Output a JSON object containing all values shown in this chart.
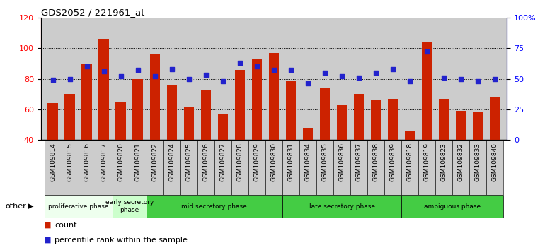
{
  "title": "GDS2052 / 221961_at",
  "samples": [
    "GSM109814",
    "GSM109815",
    "GSM109816",
    "GSM109817",
    "GSM109820",
    "GSM109821",
    "GSM109822",
    "GSM109824",
    "GSM109825",
    "GSM109826",
    "GSM109827",
    "GSM109828",
    "GSM109829",
    "GSM109830",
    "GSM109831",
    "GSM109834",
    "GSM109835",
    "GSM109836",
    "GSM109837",
    "GSM109838",
    "GSM109839",
    "GSM109818",
    "GSM109819",
    "GSM109823",
    "GSM109832",
    "GSM109833",
    "GSM109840"
  ],
  "counts": [
    64,
    70,
    90,
    106,
    65,
    80,
    96,
    76,
    62,
    73,
    57,
    86,
    93,
    97,
    79,
    48,
    74,
    63,
    70,
    66,
    67,
    46,
    104,
    67,
    59,
    58,
    68
  ],
  "percentiles": [
    49,
    50,
    60,
    56,
    52,
    57,
    52,
    58,
    50,
    53,
    48,
    63,
    60,
    57,
    57,
    46,
    55,
    52,
    51,
    55,
    58,
    48,
    72,
    51,
    50,
    48,
    50
  ],
  "ylim_left": [
    40,
    120
  ],
  "ylim_right": [
    0,
    100
  ],
  "yticks_left": [
    40,
    60,
    80,
    100,
    120
  ],
  "yticks_right": [
    0,
    25,
    50,
    75,
    100
  ],
  "ytick_labels_right": [
    "0",
    "25",
    "50",
    "75",
    "100%"
  ],
  "bar_color": "#cc2200",
  "dot_color": "#2222cc",
  "plot_bg_color": "#cccccc",
  "xtick_bg_color": "#cccccc",
  "phase_data": [
    {
      "label": "proliferative phase",
      "start": 0,
      "end": 4,
      "color": "#eeffee"
    },
    {
      "label": "early secretory\nphase",
      "start": 4,
      "end": 6,
      "color": "#ccffcc"
    },
    {
      "label": "mid secretory phase",
      "start": 6,
      "end": 14,
      "color": "#44cc44"
    },
    {
      "label": "late secretory phase",
      "start": 14,
      "end": 21,
      "color": "#44cc44"
    },
    {
      "label": "ambiguous phase",
      "start": 21,
      "end": 27,
      "color": "#44cc44"
    }
  ],
  "other_label": "other",
  "legend_count_label": "count",
  "legend_pct_label": "percentile rank within the sample"
}
